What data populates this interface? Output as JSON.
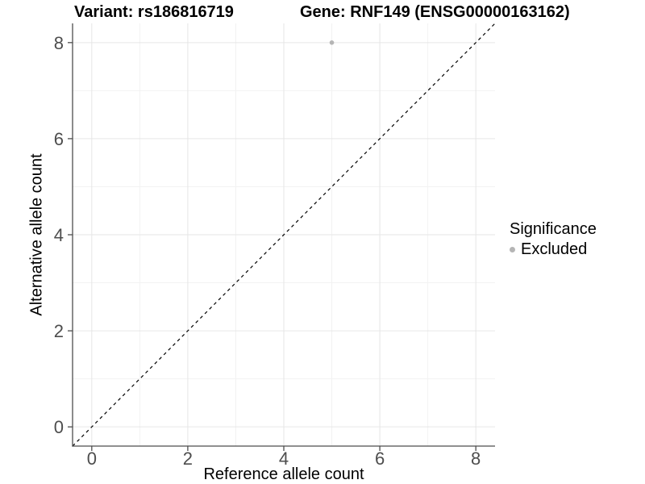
{
  "title": {
    "variant": "Variant: rs186816719",
    "gene": "Gene: RNF149 (ENSG00000163162)"
  },
  "chart_data": {
    "type": "scatter",
    "title": "Variant: rs186816719   Gene: RNF149 (ENSG00000163162)",
    "xlabel": "Reference allele count",
    "ylabel": "Alternative allele count",
    "xlim": [
      -0.4,
      8.4
    ],
    "ylim": [
      -0.4,
      8.4
    ],
    "xticks": [
      0,
      2,
      4,
      6,
      8
    ],
    "yticks": [
      0,
      2,
      4,
      6,
      8
    ],
    "minor_gridlines_x": [
      1,
      3,
      5,
      7
    ],
    "minor_gridlines_y": [
      1,
      3,
      5,
      7
    ],
    "grid": "major and minor, light grey on white",
    "points": [
      {
        "x": 5,
        "y": 8,
        "series": "Excluded"
      }
    ],
    "reference_line": {
      "type": "identity",
      "slope": 1,
      "intercept": 0,
      "style": "dashed",
      "color": "#000000"
    },
    "legend": {
      "title": "Significance",
      "position": "right",
      "entries": [
        {
          "label": "Excluded",
          "color": "#b5b5b5",
          "marker": "circle"
        }
      ]
    }
  },
  "colors": {
    "background": "#ffffff",
    "grid_major": "#e6e6e6",
    "grid_minor": "#f2f2f2",
    "axis_line": "#4d4d4d",
    "tick_label": "#4d4d4d",
    "point": "#b5b5b5",
    "title_text": "#000000"
  }
}
